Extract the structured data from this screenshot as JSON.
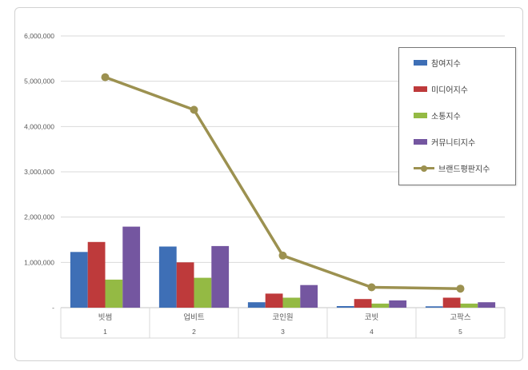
{
  "chart_data": {
    "type": "bar",
    "title": "",
    "categories": [
      "빗썸",
      "업비트",
      "코인원",
      "코빗",
      "고팍스"
    ],
    "category_numbers": [
      "1",
      "2",
      "3",
      "4",
      "5"
    ],
    "series": [
      {
        "name": "참여지수",
        "type": "bar",
        "color": "#3E6FB6",
        "values": [
          1230000,
          1350000,
          120000,
          35000,
          30000
        ]
      },
      {
        "name": "미디어지수",
        "type": "bar",
        "color": "#BE3A3B",
        "values": [
          1450000,
          1000000,
          310000,
          190000,
          220000
        ]
      },
      {
        "name": "소통지수",
        "type": "bar",
        "color": "#94BA44",
        "values": [
          620000,
          660000,
          220000,
          90000,
          90000
        ]
      },
      {
        "name": "커뮤니티지수",
        "type": "bar",
        "color": "#7456A0",
        "values": [
          1790000,
          1360000,
          500000,
          160000,
          120000
        ]
      },
      {
        "name": "브랜드평판지수",
        "type": "line",
        "color": "#9C9150",
        "values": [
          5090000,
          4370000,
          1150000,
          450000,
          420000
        ]
      }
    ],
    "y_axis": {
      "min": 0,
      "max": 6000000,
      "step": 1000000,
      "tick_labels": [
        "-",
        "1,000,000",
        "2,000,000",
        "3,000,000",
        "4,000,000",
        "5,000,000",
        "6,000,000"
      ]
    },
    "legend_position": "top-right",
    "grid": true
  },
  "style_colors": {
    "gridline": "#d9d9d9",
    "axis_line": "#c6c6c6",
    "frame_border": "#d2d2d2",
    "legend_border": "#777777",
    "tick_text": "#595959",
    "category_text": "#595959"
  }
}
